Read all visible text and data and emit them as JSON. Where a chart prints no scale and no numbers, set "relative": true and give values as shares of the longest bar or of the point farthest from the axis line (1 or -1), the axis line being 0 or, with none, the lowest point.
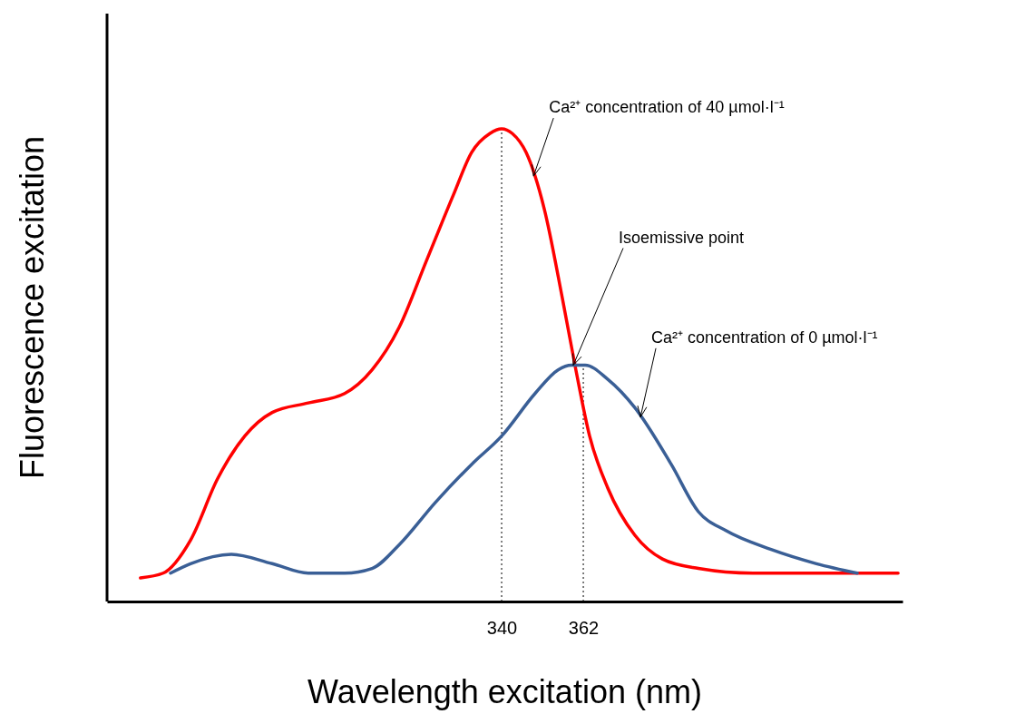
{
  "chart_data": {
    "type": "line",
    "relative": true,
    "xlabel": "Wavelength excitation (nm)",
    "ylabel": "Fluorescence excitation",
    "xlim": [
      233.7,
      448
    ],
    "xticks": [
      340,
      362
    ],
    "tick_labels": "x",
    "grid": false,
    "marker": "none",
    "line_style": "solid",
    "series": [
      {
        "color": "#ff0000",
        "x": [
          242.7,
          248.8,
          256.2,
          263.5,
          270.8,
          278.2,
          287.9,
          297.7,
          305.1,
          312.4,
          319.7,
          327.0,
          331.9,
          336.8,
          340,
          342.9,
          346.6,
          351.5,
          356.4,
          360.0,
          363.7,
          368.6,
          375.9,
          383.3,
          393.0,
          407.7,
          424.8,
          446.8
        ],
        "values": [
          0.05,
          0.06,
          0.13,
          0.26,
          0.35,
          0.4,
          0.42,
          0.44,
          0.49,
          0.58,
          0.72,
          0.86,
          0.95,
          0.99,
          1,
          0.99,
          0.95,
          0.83,
          0.64,
          0.49,
          0.35,
          0.24,
          0.14,
          0.09,
          0.07,
          0.06,
          0.06,
          0.06
        ]
      },
      {
        "color": "#3a5f96",
        "x": [
          250.8,
          256.2,
          267.2,
          278.2,
          287.9,
          297.7,
          305.1,
          312.4,
          322.2,
          331.9,
          340,
          349.0,
          355.2,
          358.8,
          362.5,
          368.6,
          375.9,
          385.7,
          393.0,
          400.4,
          412.6,
          424.8,
          435.8
        ],
        "values": [
          0.06,
          0.08,
          0.1,
          0.08,
          0.06,
          0.06,
          0.07,
          0.12,
          0.21,
          0.29,
          0.35,
          0.44,
          0.49,
          0.5,
          0.5,
          0.47,
          0.41,
          0.29,
          0.19,
          0.15,
          0.11,
          0.08,
          0.06
        ]
      }
    ],
    "ref_lines": [
      {
        "axis": "x",
        "value": 340,
        "line_style": "dotted",
        "color": "#000000"
      },
      {
        "axis": "x",
        "value": 362,
        "line_style": "dotted",
        "color": "#000000"
      }
    ],
    "annotations": [
      {
        "text": "Ca²⁺ concentration of 40 µmol·l⁻¹",
        "x": 348.6,
        "y": 0.9
      },
      {
        "text": "Isoemissive point",
        "x": 359.3,
        "y": 0.5
      },
      {
        "text": "Ca²⁺ concentration of 0 µmol·l⁻¹",
        "x": 377.4,
        "y": 0.39
      }
    ]
  }
}
